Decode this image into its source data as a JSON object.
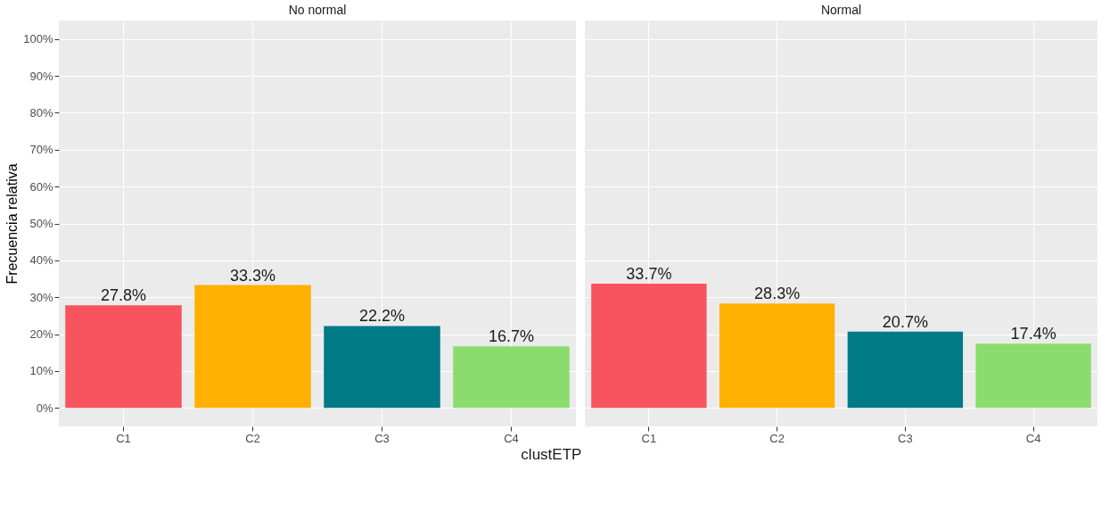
{
  "chart_data": [
    {
      "type": "bar",
      "title": "No normal",
      "ylabel": "Frecuencia relativa",
      "xlabel": "clustETP",
      "categories": [
        "C1",
        "C2",
        "C3",
        "C4"
      ],
      "values": [
        27.8,
        33.3,
        22.2,
        16.7
      ],
      "value_labels": [
        "27.8%",
        "33.3%",
        "22.2%",
        "16.7%"
      ],
      "colors": [
        "#f8545f",
        "#ffb000",
        "#007a87",
        "#8bdc6e"
      ],
      "ylim": [
        -5,
        105
      ],
      "yticks": [
        {
          "value": 0,
          "label": "0%"
        },
        {
          "value": 10,
          "label": "10%"
        },
        {
          "value": 20,
          "label": "20%"
        },
        {
          "value": 30,
          "label": "30%"
        },
        {
          "value": 40,
          "label": "40%"
        },
        {
          "value": 50,
          "label": "50%"
        },
        {
          "value": 60,
          "label": "60%"
        },
        {
          "value": 70,
          "label": "70%"
        },
        {
          "value": 80,
          "label": "80%"
        },
        {
          "value": 90,
          "label": "90%"
        },
        {
          "value": 100,
          "label": "100%"
        }
      ],
      "grid": true,
      "legend": false
    },
    {
      "type": "bar",
      "title": "Normal",
      "categories": [
        "C1",
        "C2",
        "C3",
        "C4"
      ],
      "values": [
        33.7,
        28.3,
        20.7,
        17.4
      ],
      "value_labels": [
        "33.7%",
        "28.3%",
        "20.7%",
        "17.4%"
      ],
      "colors": [
        "#f8545f",
        "#ffb000",
        "#007a87",
        "#8bdc6e"
      ],
      "ylim": [
        -5,
        105
      ],
      "yticks": [
        0,
        10,
        20,
        30,
        40,
        50,
        60,
        70,
        80,
        90,
        100
      ],
      "grid": true,
      "legend": false,
      "tick_labels": "x"
    }
  ]
}
